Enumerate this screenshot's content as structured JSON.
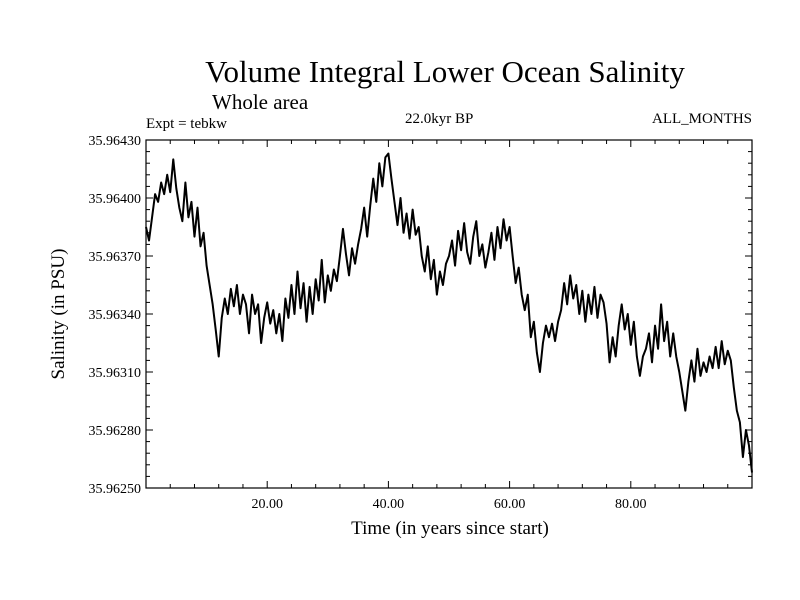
{
  "header": {
    "title": "Volume Integral Lower Ocean Salinity",
    "subtitle": "Whole area",
    "experiment": "Expt = tebkw",
    "period": "22.0kyr BP",
    "months": "ALL_MONTHS"
  },
  "chart_data": {
    "type": "line",
    "title": "Volume Integral Lower Ocean Salinity",
    "xlabel": "Time (in years since start)",
    "ylabel": "Salinity (in PSU)",
    "xlim": [
      0,
      100
    ],
    "ylim": [
      35.9625,
      35.9643
    ],
    "xticks": [
      20,
      40,
      60,
      80
    ],
    "xtick_labels": [
      "20.00",
      "40.00",
      "60.00",
      "80.00"
    ],
    "yticks": [
      35.9625,
      35.9628,
      35.9631,
      35.9634,
      35.9637,
      35.964,
      35.9643
    ],
    "ytick_labels": [
      "35.96250",
      "35.96280",
      "35.96310",
      "35.96340",
      "35.96370",
      "35.96400",
      "35.96430"
    ],
    "grid": false,
    "line_color": "#000000",
    "series": [
      {
        "name": "salinity",
        "x": [
          0,
          0.5,
          1,
          1.5,
          2,
          2.5,
          3,
          3.5,
          4,
          4.5,
          5,
          5.5,
          6,
          6.5,
          7,
          7.5,
          8,
          8.5,
          9,
          9.5,
          10,
          10.5,
          11,
          11.5,
          12,
          12.5,
          13,
          13.5,
          14,
          14.5,
          15,
          15.5,
          16,
          16.5,
          17,
          17.5,
          18,
          18.5,
          19,
          19.5,
          20,
          20.5,
          21,
          21.5,
          22,
          22.5,
          23,
          23.5,
          24,
          24.5,
          25,
          25.5,
          26,
          26.5,
          27,
          27.5,
          28,
          28.5,
          29,
          29.5,
          30,
          30.5,
          31,
          31.5,
          32,
          32.5,
          33,
          33.5,
          34,
          34.5,
          35,
          35.5,
          36,
          36.5,
          37,
          37.5,
          38,
          38.5,
          39,
          39.5,
          40,
          40.5,
          41,
          41.5,
          42,
          42.5,
          43,
          43.5,
          44,
          44.5,
          45,
          45.5,
          46,
          46.5,
          47,
          47.5,
          48,
          48.5,
          49,
          49.5,
          50,
          50.5,
          51,
          51.5,
          52,
          52.5,
          53,
          53.5,
          54,
          54.5,
          55,
          55.5,
          56,
          56.5,
          57,
          57.5,
          58,
          58.5,
          59,
          59.5,
          60,
          60.5,
          61,
          61.5,
          62,
          62.5,
          63,
          63.5,
          64,
          64.5,
          65,
          65.5,
          66,
          66.5,
          67,
          67.5,
          68,
          68.5,
          69,
          69.5,
          70,
          70.5,
          71,
          71.5,
          72,
          72.5,
          73,
          73.5,
          74,
          74.5,
          75,
          75.5,
          76,
          76.5,
          77,
          77.5,
          78,
          78.5,
          79,
          79.5,
          80,
          80.5,
          81,
          81.5,
          82,
          82.5,
          83,
          83.5,
          84,
          84.5,
          85,
          85.5,
          86,
          86.5,
          87,
          87.5,
          88,
          88.5,
          89,
          89.5,
          90,
          90.5,
          91,
          91.5,
          92,
          92.5,
          93,
          93.5,
          94,
          94.5,
          95,
          95.5,
          96,
          96.5,
          97,
          97.5,
          98,
          98.5,
          99,
          99.5,
          100
        ],
        "values": [
          35.96385,
          35.96378,
          35.9639,
          35.96402,
          35.96398,
          35.96408,
          35.96402,
          35.96412,
          35.96403,
          35.9642,
          35.96405,
          35.96395,
          35.96388,
          35.96408,
          35.9639,
          35.96398,
          35.9638,
          35.96395,
          35.96375,
          35.96382,
          35.96365,
          35.96355,
          35.96345,
          35.96332,
          35.96318,
          35.96338,
          35.96348,
          35.9634,
          35.96353,
          35.96344,
          35.96355,
          35.9634,
          35.9635,
          35.96345,
          35.9633,
          35.9635,
          35.9634,
          35.96345,
          35.96325,
          35.96338,
          35.96346,
          35.96335,
          35.96342,
          35.9633,
          35.9634,
          35.96326,
          35.96348,
          35.96338,
          35.96355,
          35.9634,
          35.96362,
          35.96343,
          35.96356,
          35.96336,
          35.96354,
          35.9634,
          35.96358,
          35.96347,
          35.96368,
          35.96346,
          35.9636,
          35.96352,
          35.96363,
          35.96357,
          35.9637,
          35.96384,
          35.96371,
          35.9636,
          35.96374,
          35.96366,
          35.96376,
          35.96384,
          35.96395,
          35.9638,
          35.96396,
          35.9641,
          35.96398,
          35.96418,
          35.96406,
          35.96421,
          35.96423,
          35.9641,
          35.96398,
          35.96386,
          35.964,
          35.96382,
          35.96392,
          35.96379,
          35.96394,
          35.96381,
          35.96385,
          35.9637,
          35.96362,
          35.96375,
          35.96358,
          35.96368,
          35.9635,
          35.96362,
          35.96355,
          35.96366,
          35.9637,
          35.96378,
          35.96365,
          35.96383,
          35.96373,
          35.96387,
          35.96372,
          35.96366,
          35.9638,
          35.96388,
          35.9637,
          35.96376,
          35.96364,
          35.96372,
          35.96382,
          35.96368,
          35.96385,
          35.96374,
          35.96389,
          35.96378,
          35.96385,
          35.9637,
          35.96356,
          35.96364,
          35.9635,
          35.96342,
          35.9635,
          35.96328,
          35.96336,
          35.9632,
          35.9631,
          35.96325,
          35.96334,
          35.96328,
          35.96335,
          35.96326,
          35.96336,
          35.96342,
          35.96356,
          35.96345,
          35.9636,
          35.96348,
          35.96355,
          35.9634,
          35.96352,
          35.96336,
          35.9635,
          35.9634,
          35.96354,
          35.96338,
          35.9635,
          35.96346,
          35.96335,
          35.96315,
          35.96328,
          35.96318,
          35.96334,
          35.96345,
          35.96332,
          35.9634,
          35.96324,
          35.96336,
          35.96318,
          35.96308,
          35.96318,
          35.96322,
          35.9633,
          35.96315,
          35.96334,
          35.96322,
          35.96345,
          35.96326,
          35.96336,
          35.96318,
          35.9633,
          35.96318,
          35.9631,
          35.963,
          35.9629,
          35.96305,
          35.96316,
          35.96305,
          35.96322,
          35.96308,
          35.96315,
          35.9631,
          35.96318,
          35.96312,
          35.96323,
          35.96312,
          35.96326,
          35.96314,
          35.96321,
          35.96316,
          35.96302,
          35.9629,
          35.96284,
          35.96266,
          35.9628,
          35.96272,
          35.96258
        ]
      }
    ]
  }
}
